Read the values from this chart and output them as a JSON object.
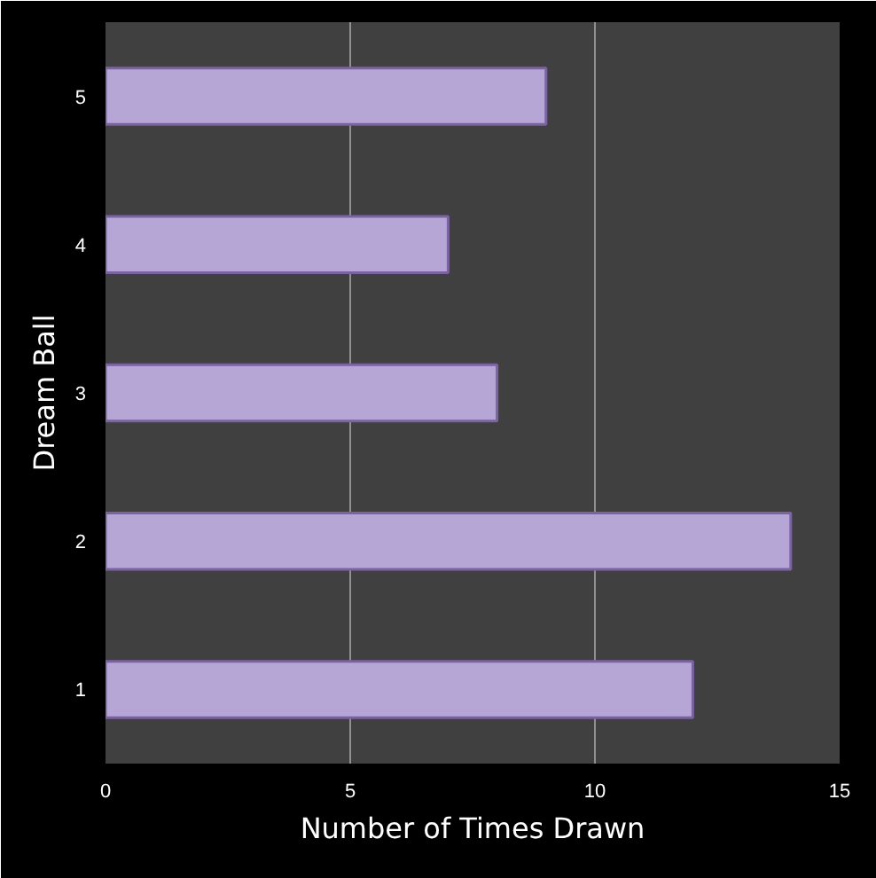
{
  "chart_data": {
    "type": "bar",
    "orientation": "horizontal",
    "xlabel": "Number of Times Drawn",
    "ylabel": "Dream Ball",
    "categories": [
      "5",
      "4",
      "3",
      "2",
      "1"
    ],
    "values": [
      9,
      7,
      8,
      14,
      12
    ],
    "color": "#b5a6d6",
    "xlim": [
      0,
      15
    ],
    "xticks": [
      0,
      5,
      10,
      15
    ],
    "grid": "x"
  }
}
